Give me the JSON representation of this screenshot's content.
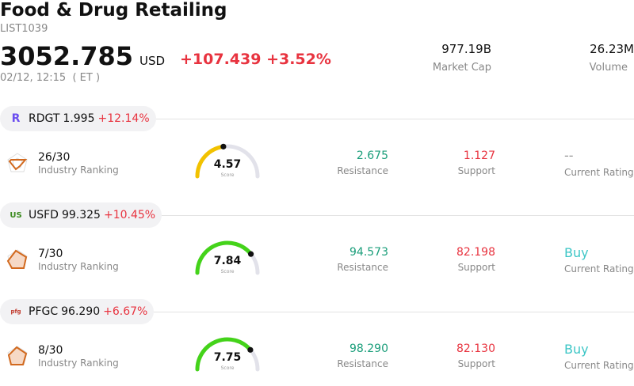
{
  "header": {
    "title": "Food & Drug Retailing",
    "code": "LIST1039",
    "price": "3052.785",
    "currency": "USD",
    "change": "+107.439 +3.52%",
    "datetime": "02/12, 12:15  ( ET )",
    "market_cap_value": "977.19B",
    "market_cap_label": "Market Cap",
    "volume_value": "26.23M",
    "volume_label": "Volume"
  },
  "stocks": [
    {
      "symbol": "RDGT",
      "price": "1.995",
      "change": "+12.14%",
      "logo": "R",
      "rank": "26/30",
      "rank_label": "Industry Ranking",
      "score": "4.57",
      "score_label": "Score",
      "score_fraction": 0.457,
      "gauge_color": "#f2c200",
      "resistance": "2.675",
      "resistance_label": "Resistance",
      "support": "1.127",
      "support_label": "Support",
      "rating": "--",
      "rating_label": "Current Rating"
    },
    {
      "symbol": "USFD",
      "price": "99.325",
      "change": "+10.45%",
      "logo": "US",
      "rank": "7/30",
      "rank_label": "Industry Ranking",
      "score": "7.84",
      "score_label": "Score",
      "score_fraction": 0.784,
      "gauge_color": "#44d31a",
      "resistance": "94.573",
      "resistance_label": "Resistance",
      "support": "82.198",
      "support_label": "Support",
      "rating": "Buy",
      "rating_label": "Current Rating"
    },
    {
      "symbol": "PFGC",
      "price": "96.290",
      "change": "+6.67%",
      "logo": "pfg",
      "rank": "8/30",
      "rank_label": "Industry Ranking",
      "score": "7.75",
      "score_label": "Score",
      "score_fraction": 0.775,
      "gauge_color": "#44d31a",
      "resistance": "98.290",
      "resistance_label": "Resistance",
      "support": "82.130",
      "support_label": "Support",
      "rating": "Buy",
      "rating_label": "Current Rating"
    }
  ]
}
